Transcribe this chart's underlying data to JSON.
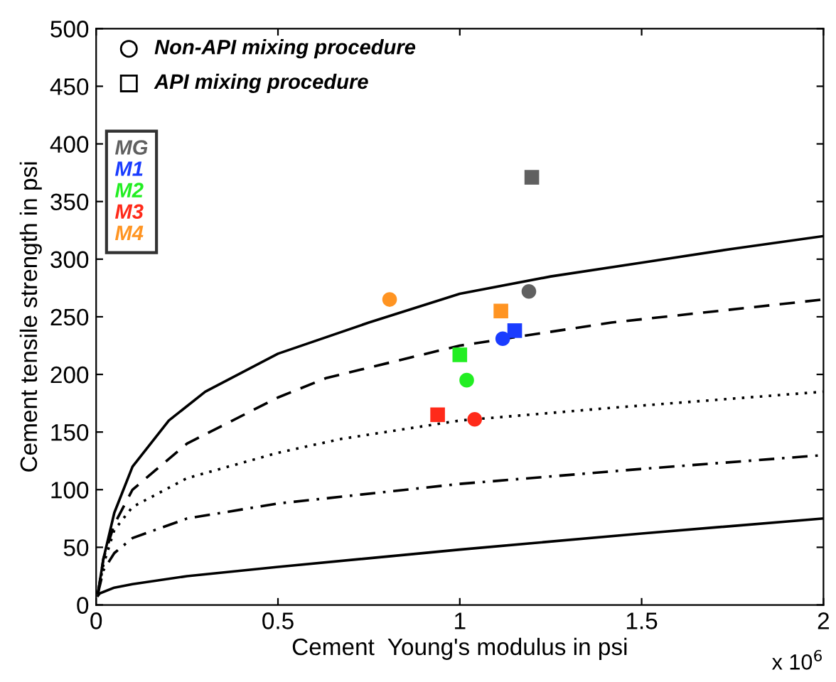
{
  "chart_data": {
    "type": "scatter",
    "xlabel": "Cement  Young's modulus in psi",
    "ylabel": "Cement tensile strength in psi",
    "xlim": [
      0,
      2
    ],
    "ylim": [
      0,
      500
    ],
    "xticks": [
      0,
      0.5,
      1,
      1.5,
      2
    ],
    "yticks": [
      0,
      50,
      100,
      150,
      200,
      250,
      300,
      350,
      400,
      450,
      500
    ],
    "annotations": [
      "x 10$^{6}$",
      "Non-API mixing procedure",
      "API mixing procedure"
    ],
    "legend": "top left",
    "grid": false,
    "series": [
      {
        "type": "line",
        "color": "#000000",
        "line_style": "solid",
        "marker": "none",
        "x": [
          0.005,
          0.02,
          0.05,
          0.1,
          0.2,
          0.3,
          0.5,
          0.75,
          1.0,
          1.25,
          1.5,
          1.75,
          2
        ],
        "values": [
          10,
          40,
          80,
          120,
          160,
          185,
          218,
          245,
          270,
          285,
          297,
          309,
          320
        ]
      },
      {
        "type": "line",
        "color": "#000000",
        "line_style": "dashed",
        "marker": "none",
        "x": [
          0.005,
          0.02,
          0.05,
          0.1,
          0.25,
          0.5,
          0.634,
          1.0,
          1.417,
          2
        ],
        "values": [
          10,
          40,
          70,
          100,
          140,
          180,
          197,
          225,
          245,
          265
        ]
      },
      {
        "type": "line",
        "color": "#000000",
        "line_style": "dotted",
        "marker": "none",
        "x": [
          0.005,
          0.02,
          0.05,
          0.1,
          0.25,
          0.5,
          0.673,
          1.0,
          1.417,
          2
        ],
        "values": [
          10,
          35,
          65,
          85,
          110,
          132,
          144,
          160,
          171,
          185
        ]
      },
      {
        "type": "line",
        "color": "#000000",
        "line_style": "dashdot",
        "marker": "none",
        "x": [
          0.005,
          0.02,
          0.05,
          0.1,
          0.25,
          0.5,
          1.0,
          1.5,
          2
        ],
        "values": [
          10,
          30,
          45,
          58,
          75,
          88,
          105,
          118,
          130
        ]
      },
      {
        "type": "line",
        "color": "#000000",
        "line_style": "solid",
        "marker": "none",
        "x": [
          0.005,
          0.01,
          0.05,
          0.1,
          0.25,
          0.5,
          1.0,
          1.5,
          2
        ],
        "values": [
          8,
          10,
          15,
          18,
          25,
          33,
          48,
          62,
          75
        ]
      },
      {
        "name": "MG",
        "color": "#606060",
        "marker": [
          "circle",
          "square"
        ],
        "x": [
          1.19,
          1.198
        ],
        "values": [
          272,
          371
        ]
      },
      {
        "name": "M1",
        "color": "#1a3cff",
        "marker": [
          "circle",
          "square"
        ],
        "x": [
          1.118,
          1.151
        ],
        "values": [
          231,
          238
        ]
      },
      {
        "name": "M2",
        "color": "#22ee22",
        "marker": [
          "circle",
          "square"
        ],
        "x": [
          1.019,
          1.0
        ],
        "values": [
          195,
          217
        ]
      },
      {
        "name": "M3",
        "color": "#ff2a1a",
        "marker": [
          "circle",
          "square"
        ],
        "x": [
          1.041,
          0.939
        ],
        "values": [
          161,
          165
        ]
      },
      {
        "name": "M4",
        "color": "#ff9422",
        "marker": [
          "circle",
          "square"
        ],
        "x": [
          0.807,
          1.113
        ],
        "values": [
          265,
          255
        ]
      }
    ]
  }
}
